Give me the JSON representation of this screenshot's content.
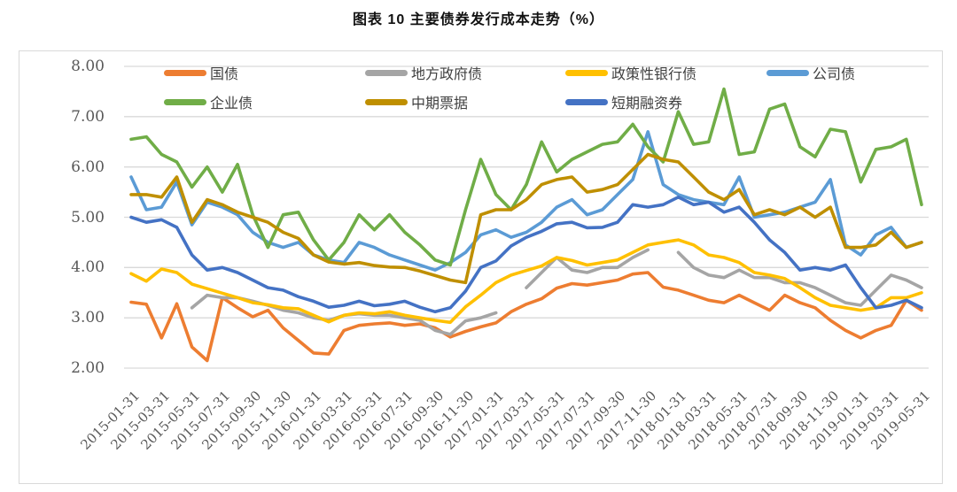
{
  "title": "图表 10 主要债券发行成本走势（%）",
  "chart_data": {
    "type": "line",
    "title": "图表 10 主要债券发行成本走势（%）",
    "xlabel": "",
    "ylabel": "",
    "ylim": [
      2.0,
      8.0
    ],
    "grid": "horizontal",
    "legend_position": "top",
    "y_tick_labels": [
      "8.00",
      "7.00",
      "6.00",
      "5.00",
      "4.00",
      "3.00",
      "2.00"
    ],
    "x_tick_labels": [
      "2015-01-31",
      "2015-03-31",
      "2015-05-31",
      "2015-07-31",
      "2015-09-30",
      "2015-11-30",
      "2016-01-31",
      "2016-03-31",
      "2016-05-31",
      "2016-07-31",
      "2016-09-30",
      "2016-11-30",
      "2017-01-31",
      "2017-03-31",
      "2017-05-31",
      "2017-07-31",
      "2017-09-30",
      "2017-11-30",
      "2018-01-31",
      "2018-03-31",
      "2018-05-31",
      "2018-07-31",
      "2018-09-30",
      "2018-11-30",
      "2019-01-31",
      "2019-03-31",
      "2019-05-31"
    ],
    "x_months": "monthly from 2015-01 to 2019-05 (53 points), labels every 2 months",
    "legend_rows": [
      [
        "国债",
        "地方政府债",
        "政策性银行债",
        "公司债"
      ],
      [
        "企业债",
        "中期票据",
        "短期融资券"
      ]
    ],
    "series": [
      {
        "name": "国债",
        "key": "treasury-bond",
        "color": "#ED7D31",
        "values": [
          3.31,
          3.27,
          2.6,
          3.28,
          2.42,
          2.15,
          3.4,
          3.2,
          3.02,
          3.15,
          2.8,
          2.55,
          2.3,
          2.28,
          2.75,
          2.85,
          2.88,
          2.9,
          2.85,
          2.88,
          2.8,
          2.62,
          2.73,
          2.82,
          2.9,
          3.12,
          3.27,
          3.38,
          3.59,
          3.68,
          3.65,
          3.7,
          3.75,
          3.87,
          3.9,
          3.61,
          3.55,
          3.45,
          3.35,
          3.3,
          3.45,
          3.3,
          3.15,
          3.45,
          3.3,
          3.2,
          2.95,
          2.75,
          2.6,
          2.75,
          2.85,
          3.35,
          3.15
        ]
      },
      {
        "name": "地方政府债",
        "key": "local-government-bond",
        "color": "#A5A5A5",
        "values": [
          null,
          null,
          null,
          null,
          3.2,
          3.45,
          3.4,
          3.4,
          3.33,
          3.25,
          3.15,
          3.1,
          3.0,
          2.95,
          3.05,
          3.08,
          3.05,
          3.05,
          3.0,
          2.95,
          2.75,
          2.67,
          2.94,
          3.0,
          3.1,
          null,
          3.6,
          3.9,
          4.2,
          3.95,
          3.9,
          4.0,
          4.0,
          4.2,
          4.35,
          null,
          4.3,
          4.0,
          3.85,
          3.8,
          3.95,
          3.8,
          3.8,
          3.7,
          3.7,
          3.6,
          3.45,
          3.3,
          3.25,
          3.55,
          3.85,
          3.75,
          3.6
        ]
      },
      {
        "name": "政策性银行债",
        "key": "policy-bank-bond",
        "color": "#FFC000",
        "values": [
          3.88,
          3.73,
          3.97,
          3.9,
          3.67,
          3.58,
          3.49,
          3.4,
          3.3,
          3.26,
          3.2,
          3.18,
          3.05,
          2.92,
          3.05,
          3.1,
          3.08,
          3.12,
          3.05,
          3.0,
          2.95,
          2.91,
          3.22,
          3.45,
          3.7,
          3.85,
          3.94,
          4.03,
          4.2,
          4.14,
          4.05,
          4.1,
          4.15,
          4.3,
          4.45,
          4.5,
          4.55,
          4.45,
          4.25,
          4.2,
          4.1,
          3.9,
          3.85,
          3.78,
          3.6,
          3.4,
          3.25,
          3.2,
          3.15,
          3.2,
          3.4,
          3.4,
          3.5
        ]
      },
      {
        "name": "公司债",
        "key": "corporate-bond",
        "color": "#5B9BD5",
        "values": [
          5.8,
          5.15,
          5.2,
          5.7,
          4.85,
          5.3,
          5.2,
          5.05,
          4.7,
          4.5,
          4.4,
          4.5,
          4.25,
          4.15,
          4.1,
          4.5,
          4.4,
          4.25,
          4.15,
          4.05,
          3.95,
          4.1,
          4.3,
          4.65,
          4.75,
          4.6,
          4.7,
          4.9,
          5.2,
          5.35,
          5.05,
          5.15,
          5.45,
          5.75,
          6.7,
          5.65,
          5.45,
          5.35,
          5.3,
          5.25,
          5.8,
          5.0,
          5.05,
          5.1,
          5.2,
          5.3,
          5.75,
          4.45,
          4.25,
          4.65,
          4.8,
          4.4,
          4.5
        ]
      },
      {
        "name": "企业债",
        "key": "enterprise-bond",
        "color": "#70AD47",
        "values": [
          6.55,
          6.6,
          6.25,
          6.1,
          5.6,
          6.0,
          5.5,
          6.05,
          5.05,
          4.4,
          5.05,
          5.1,
          4.55,
          4.15,
          4.5,
          5.05,
          4.75,
          5.05,
          4.7,
          4.45,
          4.15,
          4.05,
          5.15,
          6.15,
          5.45,
          5.15,
          5.65,
          6.5,
          5.9,
          6.15,
          6.3,
          6.45,
          6.5,
          6.85,
          6.4,
          6.1,
          7.1,
          6.45,
          6.5,
          7.55,
          6.25,
          6.3,
          7.15,
          7.25,
          6.4,
          6.2,
          6.75,
          6.7,
          5.7,
          6.35,
          6.4,
          6.55,
          5.25
        ]
      },
      {
        "name": "中期票据",
        "key": "medium-term-note",
        "color": "#BF8F00",
        "values": [
          5.45,
          5.45,
          5.4,
          5.8,
          4.9,
          5.35,
          5.25,
          5.1,
          5.0,
          4.9,
          4.7,
          4.58,
          4.25,
          4.11,
          4.07,
          4.1,
          4.04,
          4.01,
          4.0,
          3.93,
          3.84,
          3.75,
          3.7,
          5.05,
          5.15,
          5.15,
          5.35,
          5.65,
          5.75,
          5.8,
          5.5,
          5.55,
          5.65,
          5.95,
          6.25,
          6.15,
          6.1,
          5.8,
          5.5,
          5.35,
          5.55,
          5.05,
          5.15,
          5.05,
          5.2,
          5.0,
          5.2,
          4.4,
          4.4,
          4.45,
          4.7,
          4.4,
          4.5
        ]
      },
      {
        "name": "短期融资券",
        "key": "short-term-financing-bill",
        "color": "#4472C4",
        "values": [
          5.0,
          4.9,
          4.95,
          4.8,
          4.25,
          3.95,
          4.0,
          3.9,
          3.75,
          3.6,
          3.55,
          3.42,
          3.33,
          3.21,
          3.25,
          3.33,
          3.24,
          3.27,
          3.33,
          3.21,
          3.12,
          3.2,
          3.53,
          4.0,
          4.13,
          4.43,
          4.6,
          4.72,
          4.87,
          4.9,
          4.79,
          4.8,
          4.9,
          5.25,
          5.2,
          5.25,
          5.4,
          5.25,
          5.3,
          5.1,
          5.2,
          4.9,
          4.55,
          4.3,
          3.95,
          4.0,
          3.95,
          4.05,
          3.6,
          3.2,
          3.25,
          3.35,
          3.2
        ]
      }
    ]
  },
  "layout_colors": {
    "grid": "#d9d9d9",
    "border": "#d9d9d9",
    "tick_text": "#595959",
    "legend_text": "#404040",
    "title_text": "#111111"
  }
}
